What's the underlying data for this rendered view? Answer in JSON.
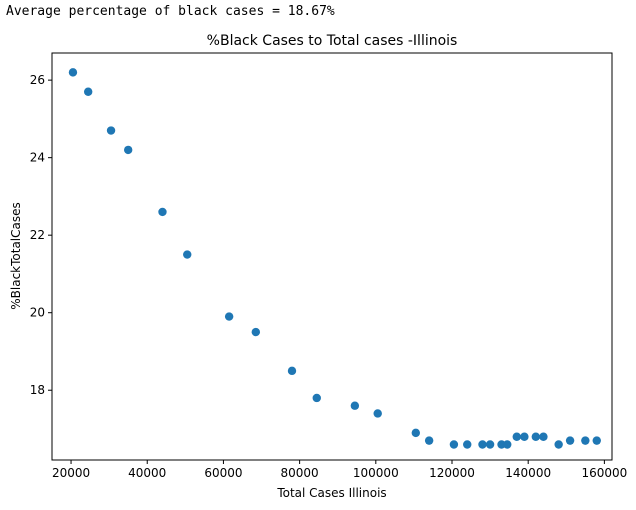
{
  "output_text": "Average percentage of black cases = 18.67%",
  "chart_data": {
    "type": "scatter",
    "title": "%Black Cases to Total cases -Illinois",
    "xlabel": "Total Cases Illinois",
    "ylabel": "%BlackTotalCases",
    "xlim": [
      15000,
      162000
    ],
    "ylim": [
      16.2,
      26.7
    ],
    "xticks": [
      20000,
      40000,
      60000,
      80000,
      100000,
      120000,
      140000,
      160000
    ],
    "yticks": [
      18,
      20,
      22,
      24,
      26
    ],
    "grid": false,
    "point_color": "#1f77b4",
    "x": [
      20500,
      24500,
      30500,
      35000,
      44000,
      50500,
      61500,
      68500,
      78000,
      84500,
      94500,
      100500,
      110500,
      114000,
      120500,
      124000,
      128000,
      130000,
      133000,
      134500,
      137000,
      139000,
      142000,
      144000,
      148000,
      151000,
      155000,
      158000
    ],
    "y": [
      26.2,
      25.7,
      24.7,
      24.2,
      22.6,
      21.5,
      19.9,
      19.5,
      18.5,
      17.8,
      17.6,
      17.4,
      16.9,
      16.7,
      16.6,
      16.6,
      16.6,
      16.6,
      16.6,
      16.6,
      16.8,
      16.8,
      16.8,
      16.8,
      16.6,
      16.7,
      16.7,
      16.7
    ]
  }
}
